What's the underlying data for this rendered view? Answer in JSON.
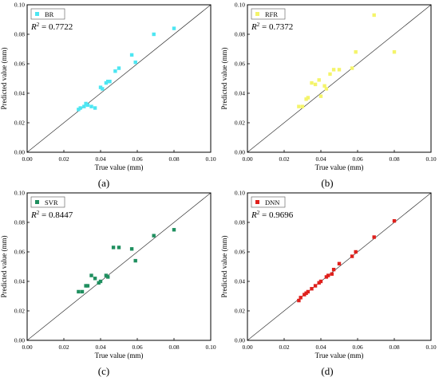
{
  "figure": {
    "panels": [
      {
        "label": "(a)",
        "legend": "BR",
        "r2_prefix": "R",
        "r2_sup": "2",
        "r2_value": " = 0.7722",
        "color": "#4de6f2"
      },
      {
        "label": "(b)",
        "legend": "RFR",
        "r2_prefix": "R",
        "r2_sup": "2",
        "r2_value": " = 0.7372",
        "color": "#f4f46a"
      },
      {
        "label": "(c)",
        "legend": "SVR",
        "r2_prefix": "R",
        "r2_sup": "2",
        "r2_value": " = 0.8447",
        "color": "#1f8f5f"
      },
      {
        "label": "(d)",
        "legend": "DNN",
        "r2_prefix": "R",
        "r2_sup": "2",
        "r2_value": " = 0.9696",
        "color": "#e0201c"
      }
    ]
  },
  "chart_data": [
    {
      "type": "scatter",
      "title": "",
      "xlabel": "True value (mm)",
      "ylabel": "Predicted value (mm)",
      "xlim": [
        0,
        0.1
      ],
      "ylim": [
        0,
        0.1
      ],
      "xticks": [
        "0.00",
        "0.02",
        "0.04",
        "0.06",
        "0.08",
        "0.10"
      ],
      "yticks": [
        "0.00",
        "0.02",
        "0.04",
        "0.06",
        "0.08",
        "0.10"
      ],
      "reference_line": "y = x",
      "series": [
        {
          "name": "BR",
          "color": "#4de6f2",
          "x": [
            0.028,
            0.029,
            0.031,
            0.032,
            0.033,
            0.035,
            0.037,
            0.04,
            0.041,
            0.043,
            0.044,
            0.045,
            0.048,
            0.05,
            0.057,
            0.059,
            0.069,
            0.08
          ],
          "y": [
            0.029,
            0.03,
            0.031,
            0.033,
            0.032,
            0.031,
            0.03,
            0.044,
            0.043,
            0.047,
            0.048,
            0.048,
            0.055,
            0.057,
            0.066,
            0.061,
            0.08,
            0.084
          ]
        }
      ],
      "legend_position": "top-left"
    },
    {
      "type": "scatter",
      "title": "",
      "xlabel": "True value (mm)",
      "ylabel": "Predicted value (mm)",
      "xlim": [
        0,
        0.1
      ],
      "ylim": [
        0,
        0.1
      ],
      "xticks": [
        "0.00",
        "0.02",
        "0.04",
        "0.06",
        "0.08",
        "0.10"
      ],
      "yticks": [
        "0.00",
        "0.02",
        "0.04",
        "0.06",
        "0.08",
        "0.10"
      ],
      "reference_line": "y = x",
      "series": [
        {
          "name": "RFR",
          "color": "#f4f46a",
          "x": [
            0.028,
            0.03,
            0.032,
            0.033,
            0.035,
            0.037,
            0.039,
            0.04,
            0.042,
            0.043,
            0.045,
            0.047,
            0.05,
            0.057,
            0.059,
            0.069,
            0.08
          ],
          "y": [
            0.031,
            0.031,
            0.036,
            0.037,
            0.047,
            0.046,
            0.049,
            0.038,
            0.045,
            0.043,
            0.053,
            0.056,
            0.056,
            0.057,
            0.068,
            0.093,
            0.068
          ]
        }
      ],
      "legend_position": "top-left"
    },
    {
      "type": "scatter",
      "title": "",
      "xlabel": "True value (mm)",
      "ylabel": "Predicted value (mm)",
      "xlim": [
        0,
        0.1
      ],
      "ylim": [
        0,
        0.1
      ],
      "xticks": [
        "0.00",
        "0.02",
        "0.04",
        "0.06",
        "0.08",
        "0.10"
      ],
      "yticks": [
        "0.00",
        "0.02",
        "0.04",
        "0.06",
        "0.08",
        "0.10"
      ],
      "reference_line": "y = x",
      "series": [
        {
          "name": "SVR",
          "color": "#1f8f5f",
          "x": [
            0.028,
            0.03,
            0.032,
            0.033,
            0.035,
            0.037,
            0.039,
            0.04,
            0.043,
            0.044,
            0.047,
            0.05,
            0.057,
            0.059,
            0.069,
            0.08
          ],
          "y": [
            0.033,
            0.033,
            0.037,
            0.037,
            0.044,
            0.042,
            0.039,
            0.04,
            0.044,
            0.043,
            0.063,
            0.063,
            0.062,
            0.054,
            0.071,
            0.075
          ]
        }
      ],
      "legend_position": "top-left"
    },
    {
      "type": "scatter",
      "title": "",
      "xlabel": "True value (mm)",
      "ylabel": "Predicted value (mm)",
      "xlim": [
        0,
        0.1
      ],
      "ylim": [
        0,
        0.1
      ],
      "xticks": [
        "0.00",
        "0.02",
        "0.04",
        "0.06",
        "0.08",
        "0.10"
      ],
      "yticks": [
        "0.00",
        "0.02",
        "0.04",
        "0.06",
        "0.08",
        "0.10"
      ],
      "reference_line": "y = x",
      "series": [
        {
          "name": "DNN",
          "color": "#e0201c",
          "x": [
            0.028,
            0.029,
            0.031,
            0.032,
            0.033,
            0.035,
            0.037,
            0.039,
            0.04,
            0.043,
            0.044,
            0.046,
            0.047,
            0.05,
            0.057,
            0.059,
            0.069,
            0.08
          ],
          "y": [
            0.027,
            0.029,
            0.031,
            0.032,
            0.033,
            0.035,
            0.037,
            0.039,
            0.04,
            0.043,
            0.044,
            0.045,
            0.048,
            0.052,
            0.057,
            0.06,
            0.07,
            0.081
          ]
        }
      ],
      "legend_position": "top-left"
    }
  ]
}
